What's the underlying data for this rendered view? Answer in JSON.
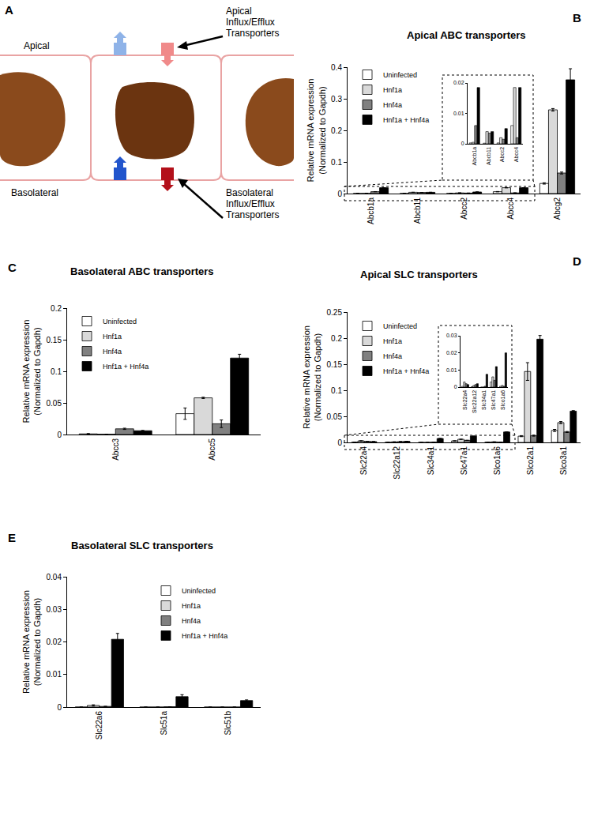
{
  "diagram": {
    "panel": "A",
    "apical": "Apical",
    "basolateral": "Basolateral",
    "apical_transporters": [
      "Apical",
      "Influx/Efflux",
      "Transporters"
    ],
    "basolateral_transporters": [
      "Basolateral",
      "Influx/Efflux",
      "Transporters"
    ]
  },
  "chart_data": [
    {
      "panel": "B",
      "type": "bar",
      "title": "Apical ABC transporters",
      "y_label": [
        "Relative mRNA expression",
        "(Normalized to Gapdh)"
      ],
      "categories": [
        "Abcb1a",
        "Abcb11",
        "Abcc2",
        "Abcc4",
        "Abcg2"
      ],
      "series": [
        {
          "name": "Uninfected",
          "color": "#ffffff",
          "values": [
            0.0003,
            0.0002,
            0.0003,
            0.006,
            0.032
          ],
          "errors": [
            0,
            0,
            0,
            0.0005,
            0.002
          ]
        },
        {
          "name": "Hnf1a",
          "color": "#d9d9d9",
          "values": [
            0.0005,
            0.004,
            0.002,
            0.0185,
            0.265
          ],
          "errors": [
            0,
            0,
            0,
            0.0005,
            0.004
          ]
        },
        {
          "name": "Hnf4a",
          "color": "#808080",
          "values": [
            0.006,
            0.0035,
            0.0015,
            0.002,
            0.065
          ],
          "errors": [
            0.0003,
            0,
            0,
            0,
            0.003
          ]
        },
        {
          "name": "Hnf1a + Hnf4a",
          "color": "#000000",
          "values": [
            0.0185,
            0.004,
            0.005,
            0.0185,
            0.36
          ],
          "errors": [
            0,
            0,
            0,
            0,
            0.035
          ]
        }
      ],
      "ylim": [
        0,
        0.4
      ],
      "yticks": [
        0,
        0.1,
        0.2,
        0.3,
        0.4
      ],
      "legend": "top left",
      "inset": {
        "categories": [
          "Abcb1a",
          "Abcb11",
          "Abcc2",
          "Abcc4"
        ],
        "ylim": [
          0,
          0.02
        ],
        "yticks": [
          0,
          0.01,
          0.02
        ]
      }
    },
    {
      "panel": "C",
      "type": "bar",
      "title": "Basolateral ABC transporters",
      "y_label": [
        "Relative mRNA expression",
        "(Normalized to Gapdh)"
      ],
      "categories": [
        "Abcc3",
        "Abcc5"
      ],
      "series": [
        {
          "name": "Uninfected",
          "color": "#ffffff",
          "values": [
            0.001,
            0.033
          ],
          "errors": [
            0.0005,
            0.009
          ]
        },
        {
          "name": "Hnf1a",
          "color": "#d9d9d9",
          "values": [
            0.0005,
            0.058
          ],
          "errors": [
            0,
            0.001
          ]
        },
        {
          "name": "Hnf4a",
          "color": "#808080",
          "values": [
            0.009,
            0.017
          ],
          "errors": [
            0.001,
            0.006
          ]
        },
        {
          "name": "Hnf1a + Hnf4a",
          "color": "#000000",
          "values": [
            0.006,
            0.121
          ],
          "errors": [
            0.0005,
            0.006
          ]
        }
      ],
      "ylim": [
        0,
        0.2
      ],
      "yticks": [
        0,
        0.05,
        0.1,
        0.15,
        0.2
      ],
      "legend": "top left"
    },
    {
      "panel": "D",
      "type": "bar",
      "title": "Apical SLC transporters",
      "y_label": [
        "Relative mRNA expression",
        "(Normalized to Gapdh)"
      ],
      "categories": [
        "Slc22a4",
        "Slc22a12",
        "Slc34a1",
        "Slc47a1",
        "Slco1a6",
        "Slco2a1",
        "Slco3a1"
      ],
      "series": [
        {
          "name": "Uninfected",
          "color": "#ffffff",
          "values": [
            0.0005,
            0.0003,
            0,
            0.003,
            0.0005,
            0.012,
            0.023
          ],
          "errors": [
            0,
            0,
            0,
            0,
            0,
            0.001,
            0.002
          ]
        },
        {
          "name": "Hnf1a",
          "color": "#d9d9d9",
          "values": [
            0.003,
            0.001,
            0,
            0.006,
            0.001,
            0.136,
            0.038
          ],
          "errors": [
            0,
            0,
            0,
            0,
            0,
            0.017,
            0.002
          ]
        },
        {
          "name": "Hnf4a",
          "color": "#808080",
          "values": [
            0.002,
            0.0015,
            0.0005,
            0.004,
            0.0005,
            0.013,
            0.02
          ],
          "errors": [
            0,
            0,
            0,
            0,
            0,
            0.001,
            0.001
          ]
        },
        {
          "name": "Hnf1a + Hnf4a",
          "color": "#000000",
          "values": [
            0.0015,
            0.002,
            0.0075,
            0.012,
            0.02,
            0.198,
            0.06
          ],
          "errors": [
            0,
            0,
            0,
            0,
            0,
            0.007,
            0.001
          ]
        }
      ],
      "ylim": [
        0,
        0.25
      ],
      "yticks": [
        0,
        0.05,
        0.1,
        0.15,
        0.2,
        0.25
      ],
      "legend": "top left",
      "inset": {
        "categories": [
          "Slc22a4",
          "Slc22a12",
          "Slc34a1",
          "Slc47a1",
          "Slco1a6"
        ],
        "ylim": [
          0,
          0.03
        ],
        "yticks": [
          0,
          0.01,
          0.02,
          0.03
        ]
      }
    },
    {
      "panel": "E",
      "type": "bar",
      "title": "Basolateral SLC transporters",
      "y_label": [
        "Relative mRNA expression",
        "(Normalized to Gapdh)"
      ],
      "categories": [
        "Slc22a6",
        "Slc51a",
        "Slc51b"
      ],
      "series": [
        {
          "name": "Uninfected",
          "color": "#ffffff",
          "values": [
            0,
            0,
            0
          ],
          "errors": [
            0,
            0,
            0
          ]
        },
        {
          "name": "Hnf1a",
          "color": "#d9d9d9",
          "values": [
            0.0005,
            0,
            0
          ],
          "errors": [
            0.0002,
            0,
            0
          ]
        },
        {
          "name": "Hnf4a",
          "color": "#808080",
          "values": [
            0.0002,
            0.0001,
            0
          ],
          "errors": [
            0,
            0,
            0
          ]
        },
        {
          "name": "Hnf1a + Hnf4a",
          "color": "#000000",
          "values": [
            0.0208,
            0.0032,
            0.002
          ],
          "errors": [
            0.0018,
            0.0006,
            0.0002
          ]
        }
      ],
      "ylim": [
        0,
        0.04
      ],
      "yticks": [
        0,
        0.01,
        0.02,
        0.03,
        0.04
      ],
      "legend": "top left"
    }
  ]
}
